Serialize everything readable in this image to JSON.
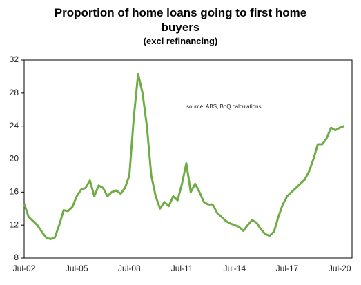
{
  "chart_data": {
    "type": "line",
    "title": "Proportion of home loans going to first home buyers",
    "subtitle": "(excl refinancing)",
    "annotation": "source:  ABS, BoQ calculations",
    "categories": [
      "Jul-02",
      null,
      null,
      null,
      null,
      null,
      null,
      null,
      null,
      null,
      null,
      null,
      "Jul-05",
      null,
      null,
      null,
      null,
      null,
      null,
      null,
      null,
      null,
      null,
      null,
      "Jul-08",
      null,
      null,
      null,
      null,
      null,
      null,
      null,
      null,
      null,
      null,
      null,
      "Jul-11",
      null,
      null,
      null,
      null,
      null,
      null,
      null,
      null,
      null,
      null,
      null,
      "Jul-14",
      null,
      null,
      null,
      null,
      null,
      null,
      null,
      null,
      null,
      null,
      null,
      "Jul-17",
      null,
      null,
      null,
      null,
      null,
      null,
      null,
      null,
      null,
      null,
      null,
      "Jul-20",
      null
    ],
    "series": [
      {
        "color": "#6fac46",
        "values": [
          14.6,
          13.0,
          12.5,
          12.0,
          11.2,
          10.5,
          10.3,
          10.5,
          12.0,
          13.8,
          13.7,
          14.2,
          15.5,
          16.3,
          16.5,
          17.4,
          15.5,
          16.8,
          16.5,
          15.5,
          16.0,
          16.2,
          15.8,
          16.5,
          18.0,
          25.0,
          30.3,
          28.0,
          24.0,
          18.0,
          15.5,
          14.0,
          14.8,
          14.3,
          15.5,
          15.0,
          17.0,
          19.5,
          16.0,
          17.0,
          16.0,
          14.8,
          14.5,
          14.5,
          13.5,
          13.0,
          12.5,
          12.2,
          12.0,
          11.8,
          11.3,
          12.0,
          12.6,
          12.3,
          11.5,
          10.9,
          10.7,
          11.2,
          13.0,
          14.5,
          15.5,
          16.0,
          16.5,
          17.0,
          17.5,
          18.5,
          20.0,
          21.8,
          21.8,
          22.5,
          23.8,
          23.5,
          23.8,
          24.0
        ]
      }
    ],
    "ylim": [
      8,
      32
    ],
    "yticks": [
      8,
      12,
      16,
      20,
      24,
      28,
      32
    ]
  }
}
